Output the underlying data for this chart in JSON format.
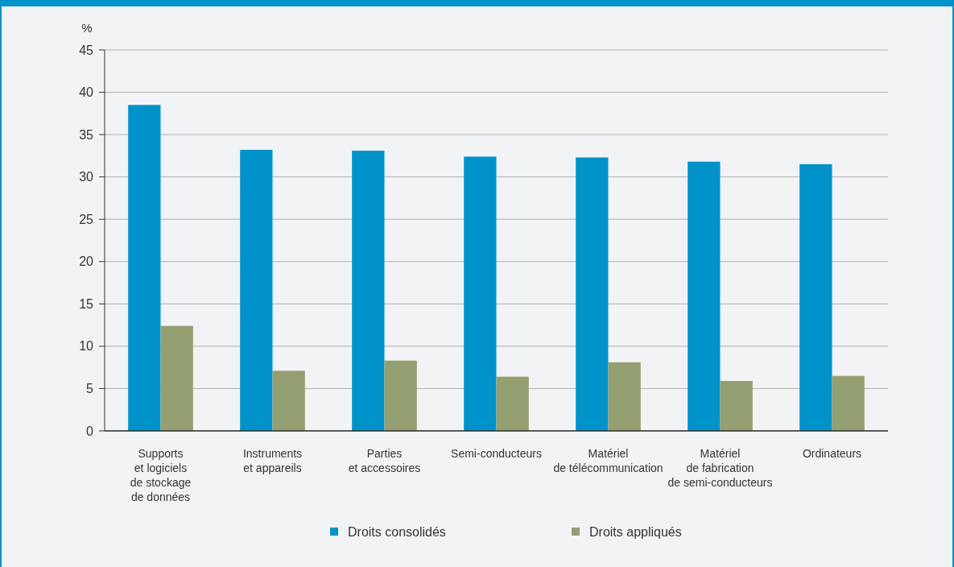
{
  "chart_data": {
    "type": "bar",
    "ylabel": "%",
    "categories": [
      "Supports\net logiciels\nde stockage\nde données",
      "Instruments\net appareils",
      "Parties\net accessoires",
      "Semi-conducteurs",
      "Matériel\nde télécommunication",
      "Matériel\nde fabrication\nde semi-conducteurs",
      "Ordinateurs"
    ],
    "series": [
      {
        "name": "Droits consolidés",
        "color": "#0093c9",
        "values": [
          38.5,
          33.2,
          33.1,
          32.4,
          32.3,
          31.8,
          31.5
        ]
      },
      {
        "name": "Droits appliqués",
        "color": "#949f72",
        "values": [
          12.4,
          7.1,
          8.3,
          6.4,
          8.1,
          5.9,
          6.5
        ]
      }
    ],
    "ylim": [
      0,
      45
    ],
    "yticks": [
      0,
      5,
      10,
      15,
      20,
      25,
      30,
      35,
      40,
      45
    ],
    "grid": "y",
    "legend": "bottom"
  }
}
